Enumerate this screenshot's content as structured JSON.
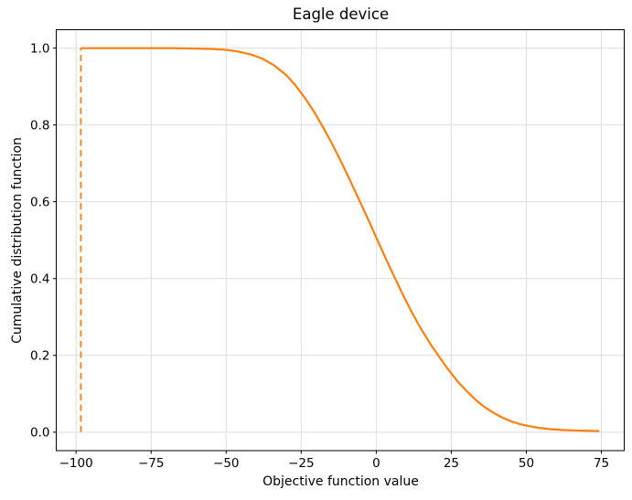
{
  "figure": {
    "title": "Eagle device",
    "xlabel": "Objective function value",
    "ylabel": "Cumulative distribution function"
  },
  "chart_data": {
    "type": "line",
    "title": "Eagle device",
    "xlabel": "Objective function value",
    "ylabel": "Cumulative distribution function",
    "xlim": [
      -106.6,
      82.6
    ],
    "ylim": [
      -0.048,
      1.048
    ],
    "grid": true,
    "legend": false,
    "colors": {
      "line": "#ff7f0e",
      "grid": "#dedede",
      "spine": "#000000",
      "text": "#000000",
      "background": "#ffffff"
    },
    "x_ticks": [
      {
        "value": -100,
        "label": "−100"
      },
      {
        "value": -75,
        "label": "−75"
      },
      {
        "value": -50,
        "label": "−50"
      },
      {
        "value": -25,
        "label": "−25"
      },
      {
        "value": 0,
        "label": "0"
      },
      {
        "value": 25,
        "label": "25"
      },
      {
        "value": 50,
        "label": "50"
      },
      {
        "value": 75,
        "label": "75"
      }
    ],
    "y_ticks": [
      {
        "value": 0.0,
        "label": "0.0"
      },
      {
        "value": 0.2,
        "label": "0.2"
      },
      {
        "value": 0.4,
        "label": "0.4"
      },
      {
        "value": 0.6,
        "label": "0.6"
      },
      {
        "value": 0.8,
        "label": "0.8"
      },
      {
        "value": 1.0,
        "label": "1.0"
      }
    ],
    "series": [
      {
        "name": "cdf-curve",
        "color": "#ff7f0e",
        "style": "solid",
        "width": 2.2,
        "points": [
          [
            -98.4,
            1.0
          ],
          [
            -95,
            1.0
          ],
          [
            -90,
            1.0
          ],
          [
            -85,
            1.0
          ],
          [
            -80,
            1.0
          ],
          [
            -75,
            1.0
          ],
          [
            -72,
            1.0
          ],
          [
            -68,
            1.0
          ],
          [
            -65,
            0.9995
          ],
          [
            -60,
            0.999
          ],
          [
            -55,
            0.998
          ],
          [
            -50,
            0.9955
          ],
          [
            -46,
            0.991
          ],
          [
            -42,
            0.984
          ],
          [
            -38,
            0.973
          ],
          [
            -34,
            0.955
          ],
          [
            -30,
            0.93
          ],
          [
            -27,
            0.904
          ],
          [
            -24,
            0.873
          ],
          [
            -21,
            0.838
          ],
          [
            -18,
            0.798
          ],
          [
            -15,
            0.755
          ],
          [
            -12,
            0.709
          ],
          [
            -9,
            0.66
          ],
          [
            -6,
            0.61
          ],
          [
            -3,
            0.559
          ],
          [
            0,
            0.507
          ],
          [
            3,
            0.455
          ],
          [
            6,
            0.405
          ],
          [
            9,
            0.356
          ],
          [
            12,
            0.31
          ],
          [
            15,
            0.268
          ],
          [
            18,
            0.23
          ],
          [
            21,
            0.196
          ],
          [
            24,
            0.163
          ],
          [
            27,
            0.133
          ],
          [
            30,
            0.108
          ],
          [
            33,
            0.085
          ],
          [
            36,
            0.066
          ],
          [
            39,
            0.051
          ],
          [
            42,
            0.038
          ],
          [
            45,
            0.028
          ],
          [
            48,
            0.021
          ],
          [
            51,
            0.0155
          ],
          [
            54,
            0.0115
          ],
          [
            58,
            0.008
          ],
          [
            62,
            0.0058
          ],
          [
            66,
            0.0045
          ],
          [
            70,
            0.0037
          ],
          [
            74.3,
            0.003
          ]
        ]
      },
      {
        "name": "threshold-vline",
        "color": "#ff7f0e",
        "style": "dashed",
        "width": 1.8,
        "points": [
          [
            -98.4,
            0.0
          ],
          [
            -98.4,
            1.0
          ]
        ]
      }
    ]
  }
}
